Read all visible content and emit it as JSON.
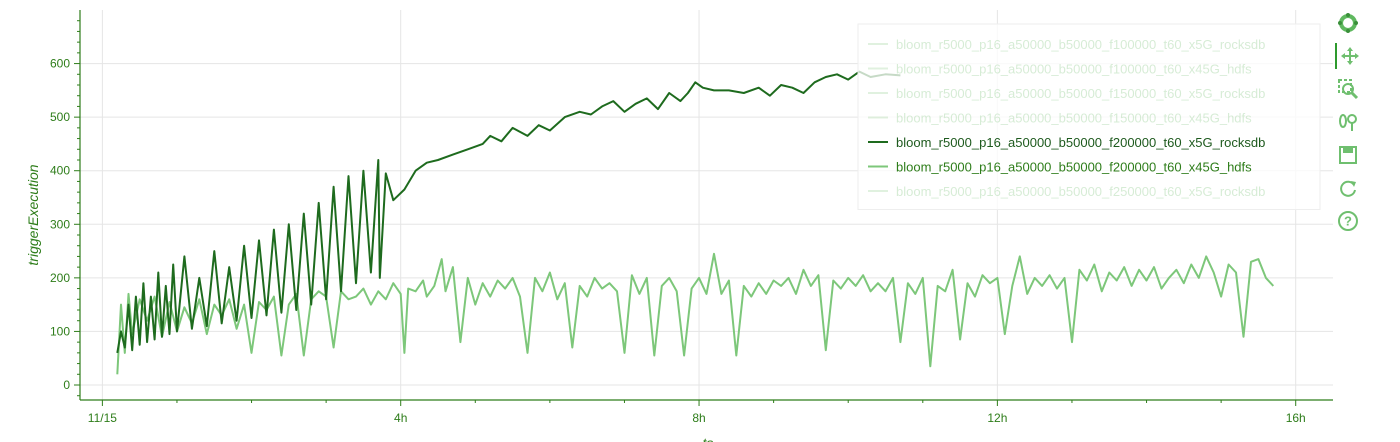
{
  "chart_data": {
    "type": "line",
    "xlabel": "ts",
    "ylabel": "triggerExecution",
    "x_ticks": [
      "11/15",
      "4h",
      "8h",
      "12h",
      "16h"
    ],
    "x_tick_hours": [
      0,
      4,
      8,
      12,
      16
    ],
    "xlim_hours": [
      -0.3,
      16.5
    ],
    "y_ticks": [
      0,
      100,
      200,
      300,
      400,
      500,
      600
    ],
    "ylim": [
      -28,
      700
    ],
    "grid": true,
    "legend_position": "top-right",
    "series": [
      {
        "name": "bloom_r5000_p16_a50000_b50000_f100000_t60_x5G_rocksdb",
        "color": "#a9d9a4",
        "opacity": 0.35,
        "values": []
      },
      {
        "name": "bloom_r5000_p16_a50000_b50000_f100000_t60_x45G_hdfs",
        "color": "#a9d9a4",
        "opacity": 0.35,
        "values": []
      },
      {
        "name": "bloom_r5000_p16_a50000_b50000_f150000_t60_x5G_rocksdb",
        "color": "#a9d9a4",
        "opacity": 0.35,
        "values": []
      },
      {
        "name": "bloom_r5000_p16_a50000_b50000_f150000_t60_x45G_hdfs",
        "color": "#a9d9a4",
        "opacity": 0.35,
        "values": []
      },
      {
        "name": "bloom_r5000_p16_a50000_b50000_f200000_t60_x5G_rocksdb",
        "color": "#1e6b1e",
        "opacity": 1,
        "values": [
          [
            0.2,
            60
          ],
          [
            0.25,
            100
          ],
          [
            0.3,
            70
          ],
          [
            0.35,
            150
          ],
          [
            0.4,
            65
          ],
          [
            0.45,
            165
          ],
          [
            0.5,
            75
          ],
          [
            0.55,
            190
          ],
          [
            0.6,
            80
          ],
          [
            0.65,
            165
          ],
          [
            0.7,
            85
          ],
          [
            0.75,
            210
          ],
          [
            0.8,
            90
          ],
          [
            0.85,
            185
          ],
          [
            0.9,
            95
          ],
          [
            0.95,
            225
          ],
          [
            1.0,
            100
          ],
          [
            1.1,
            240
          ],
          [
            1.2,
            105
          ],
          [
            1.3,
            200
          ],
          [
            1.4,
            110
          ],
          [
            1.5,
            250
          ],
          [
            1.6,
            115
          ],
          [
            1.7,
            220
          ],
          [
            1.8,
            120
          ],
          [
            1.9,
            260
          ],
          [
            2.0,
            125
          ],
          [
            2.1,
            270
          ],
          [
            2.2,
            130
          ],
          [
            2.3,
            290
          ],
          [
            2.4,
            135
          ],
          [
            2.5,
            300
          ],
          [
            2.6,
            140
          ],
          [
            2.7,
            320
          ],
          [
            2.8,
            150
          ],
          [
            2.9,
            340
          ],
          [
            3.0,
            160
          ],
          [
            3.1,
            370
          ],
          [
            3.2,
            175
          ],
          [
            3.3,
            390
          ],
          [
            3.4,
            190
          ],
          [
            3.5,
            400
          ],
          [
            3.6,
            210
          ],
          [
            3.7,
            420
          ],
          [
            3.72,
            200
          ],
          [
            3.8,
            395
          ],
          [
            3.9,
            345
          ],
          [
            4.05,
            365
          ],
          [
            4.2,
            400
          ],
          [
            4.35,
            415
          ],
          [
            4.5,
            420
          ],
          [
            4.7,
            430
          ],
          [
            4.9,
            440
          ],
          [
            5.1,
            450
          ],
          [
            5.2,
            465
          ],
          [
            5.35,
            455
          ],
          [
            5.5,
            480
          ],
          [
            5.7,
            465
          ],
          [
            5.85,
            485
          ],
          [
            6.0,
            475
          ],
          [
            6.2,
            500
          ],
          [
            6.4,
            510
          ],
          [
            6.55,
            505
          ],
          [
            6.7,
            520
          ],
          [
            6.85,
            530
          ],
          [
            7.0,
            510
          ],
          [
            7.15,
            525
          ],
          [
            7.3,
            535
          ],
          [
            7.45,
            515
          ],
          [
            7.6,
            545
          ],
          [
            7.75,
            530
          ],
          [
            7.85,
            545
          ],
          [
            7.95,
            565
          ],
          [
            8.05,
            555
          ],
          [
            8.2,
            550
          ],
          [
            8.4,
            550
          ],
          [
            8.6,
            545
          ],
          [
            8.8,
            555
          ],
          [
            8.95,
            540
          ],
          [
            9.1,
            560
          ],
          [
            9.25,
            555
          ],
          [
            9.4,
            545
          ],
          [
            9.55,
            565
          ],
          [
            9.7,
            575
          ],
          [
            9.85,
            580
          ],
          [
            10.0,
            570
          ],
          [
            10.15,
            585
          ],
          [
            10.3,
            575
          ],
          [
            10.5,
            580
          ],
          [
            10.7,
            578
          ]
        ]
      },
      {
        "name": "bloom_r5000_p16_a50000_b50000_f200000_t60_x45G_hdfs",
        "color": "#7dc77a",
        "opacity": 1,
        "values": [
          [
            0.2,
            20
          ],
          [
            0.25,
            150
          ],
          [
            0.3,
            60
          ],
          [
            0.35,
            170
          ],
          [
            0.4,
            95
          ],
          [
            0.5,
            160
          ],
          [
            0.6,
            120
          ],
          [
            0.7,
            165
          ],
          [
            0.8,
            90
          ],
          [
            0.9,
            155
          ],
          [
            1.0,
            100
          ],
          [
            1.1,
            145
          ],
          [
            1.2,
            115
          ],
          [
            1.3,
            160
          ],
          [
            1.4,
            95
          ],
          [
            1.5,
            150
          ],
          [
            1.6,
            130
          ],
          [
            1.7,
            160
          ],
          [
            1.8,
            105
          ],
          [
            1.9,
            150
          ],
          [
            2.0,
            60
          ],
          [
            2.1,
            155
          ],
          [
            2.2,
            140
          ],
          [
            2.3,
            165
          ],
          [
            2.4,
            55
          ],
          [
            2.5,
            150
          ],
          [
            2.6,
            170
          ],
          [
            2.7,
            55
          ],
          [
            2.8,
            160
          ],
          [
            2.9,
            175
          ],
          [
            3.0,
            165
          ],
          [
            3.1,
            70
          ],
          [
            3.2,
            175
          ],
          [
            3.3,
            160
          ],
          [
            3.4,
            165
          ],
          [
            3.5,
            180
          ],
          [
            3.6,
            150
          ],
          [
            3.7,
            175
          ],
          [
            3.8,
            160
          ],
          [
            3.9,
            190
          ],
          [
            4.0,
            170
          ],
          [
            4.05,
            60
          ],
          [
            4.1,
            180
          ],
          [
            4.2,
            175
          ],
          [
            4.3,
            195
          ],
          [
            4.35,
            165
          ],
          [
            4.45,
            185
          ],
          [
            4.55,
            235
          ],
          [
            4.6,
            175
          ],
          [
            4.7,
            220
          ],
          [
            4.8,
            80
          ],
          [
            4.9,
            200
          ],
          [
            5.0,
            150
          ],
          [
            5.1,
            190
          ],
          [
            5.2,
            165
          ],
          [
            5.3,
            195
          ],
          [
            5.4,
            180
          ],
          [
            5.5,
            200
          ],
          [
            5.6,
            165
          ],
          [
            5.7,
            60
          ],
          [
            5.8,
            200
          ],
          [
            5.9,
            175
          ],
          [
            6.0,
            210
          ],
          [
            6.1,
            160
          ],
          [
            6.2,
            190
          ],
          [
            6.3,
            70
          ],
          [
            6.4,
            185
          ],
          [
            6.5,
            165
          ],
          [
            6.6,
            200
          ],
          [
            6.7,
            180
          ],
          [
            6.8,
            190
          ],
          [
            6.9,
            175
          ],
          [
            7.0,
            60
          ],
          [
            7.1,
            205
          ],
          [
            7.2,
            170
          ],
          [
            7.3,
            200
          ],
          [
            7.4,
            55
          ],
          [
            7.5,
            185
          ],
          [
            7.6,
            200
          ],
          [
            7.7,
            175
          ],
          [
            7.8,
            55
          ],
          [
            7.9,
            180
          ],
          [
            8.0,
            200
          ],
          [
            8.1,
            170
          ],
          [
            8.2,
            245
          ],
          [
            8.3,
            170
          ],
          [
            8.4,
            195
          ],
          [
            8.5,
            55
          ],
          [
            8.6,
            185
          ],
          [
            8.7,
            165
          ],
          [
            8.8,
            190
          ],
          [
            8.9,
            170
          ],
          [
            9.0,
            195
          ],
          [
            9.1,
            185
          ],
          [
            9.2,
            200
          ],
          [
            9.3,
            170
          ],
          [
            9.4,
            215
          ],
          [
            9.5,
            185
          ],
          [
            9.6,
            205
          ],
          [
            9.7,
            65
          ],
          [
            9.8,
            195
          ],
          [
            9.9,
            180
          ],
          [
            10.0,
            200
          ],
          [
            10.1,
            185
          ],
          [
            10.2,
            205
          ],
          [
            10.3,
            175
          ],
          [
            10.4,
            190
          ],
          [
            10.5,
            175
          ],
          [
            10.6,
            200
          ],
          [
            10.7,
            80
          ],
          [
            10.8,
            190
          ],
          [
            10.9,
            170
          ],
          [
            11.0,
            200
          ],
          [
            11.1,
            35
          ],
          [
            11.2,
            185
          ],
          [
            11.3,
            175
          ],
          [
            11.4,
            215
          ],
          [
            11.5,
            85
          ],
          [
            11.6,
            190
          ],
          [
            11.7,
            165
          ],
          [
            11.8,
            205
          ],
          [
            11.9,
            190
          ],
          [
            12.0,
            200
          ],
          [
            12.1,
            95
          ],
          [
            12.2,
            185
          ],
          [
            12.3,
            240
          ],
          [
            12.4,
            170
          ],
          [
            12.5,
            200
          ],
          [
            12.6,
            185
          ],
          [
            12.7,
            205
          ],
          [
            12.8,
            180
          ],
          [
            12.9,
            200
          ],
          [
            13.0,
            80
          ],
          [
            13.1,
            215
          ],
          [
            13.2,
            195
          ],
          [
            13.3,
            225
          ],
          [
            13.4,
            175
          ],
          [
            13.5,
            210
          ],
          [
            13.6,
            195
          ],
          [
            13.7,
            220
          ],
          [
            13.8,
            185
          ],
          [
            13.9,
            215
          ],
          [
            14.0,
            195
          ],
          [
            14.1,
            220
          ],
          [
            14.2,
            180
          ],
          [
            14.3,
            200
          ],
          [
            14.4,
            215
          ],
          [
            14.5,
            190
          ],
          [
            14.6,
            225
          ],
          [
            14.7,
            200
          ],
          [
            14.8,
            240
          ],
          [
            14.9,
            210
          ],
          [
            15.0,
            165
          ],
          [
            15.1,
            225
          ],
          [
            15.2,
            210
          ],
          [
            15.3,
            90
          ],
          [
            15.4,
            230
          ],
          [
            15.5,
            235
          ],
          [
            15.6,
            200
          ],
          [
            15.7,
            185
          ]
        ]
      },
      {
        "name": "bloom_r5000_p16_a50000_b50000_f250000_t60_x5G_rocksdb",
        "color": "#a9d9a4",
        "opacity": 0.35,
        "values": []
      }
    ]
  },
  "toolbar": [
    {
      "name": "bokeh-logo-icon",
      "label": "Bokeh"
    },
    {
      "name": "pan-icon",
      "label": "Pan"
    },
    {
      "name": "box-zoom-icon",
      "label": "Box Zoom"
    },
    {
      "name": "wheel-zoom-icon",
      "label": "Wheel Zoom"
    },
    {
      "name": "save-icon",
      "label": "Save"
    },
    {
      "name": "reset-icon",
      "label": "Reset"
    },
    {
      "name": "help-icon",
      "label": "Help"
    }
  ],
  "colors": {
    "axis": "#2e7d1a",
    "grid": "#e5e5e5",
    "tool": "#6fbf6f"
  }
}
